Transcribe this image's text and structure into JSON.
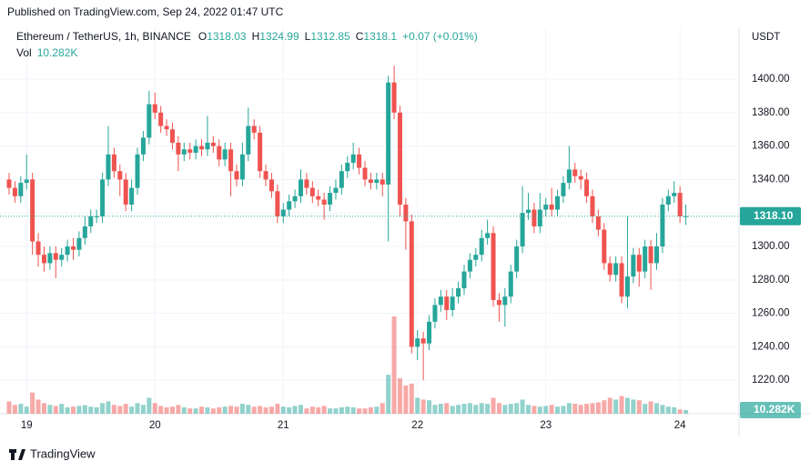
{
  "published": "Published on TradingView.com, Sep 24, 2022 01:47 UTC",
  "brand": "TradingView",
  "chart_data": {
    "type": "candlestick",
    "title": "Ethereum / TetherUS, 1h, BINANCE",
    "ohlc_labels": [
      "O",
      "H",
      "L",
      "C"
    ],
    "change_label": "+0.07 (+0.01%)",
    "y_axis_label": "USDT",
    "up_color": "#26a69a",
    "down_color": "#ef5350",
    "grid": true,
    "categories": [
      null,
      null,
      null,
      "19",
      null,
      null,
      null,
      null,
      null,
      null,
      null,
      null,
      null,
      null,
      null,
      null,
      null,
      null,
      null,
      null,
      null,
      null,
      null,
      null,
      null,
      "20",
      null,
      null,
      null,
      null,
      null,
      null,
      null,
      null,
      null,
      null,
      null,
      null,
      null,
      null,
      null,
      null,
      null,
      null,
      null,
      null,
      null,
      "21",
      null,
      null,
      null,
      null,
      null,
      null,
      null,
      null,
      null,
      null,
      null,
      null,
      null,
      null,
      null,
      null,
      null,
      null,
      null,
      null,
      null,
      null,
      "22",
      null,
      null,
      null,
      null,
      null,
      null,
      null,
      null,
      null,
      null,
      null,
      null,
      null,
      null,
      null,
      null,
      null,
      null,
      null,
      null,
      null,
      "23",
      null,
      null,
      null,
      null,
      null,
      null,
      null,
      null,
      null,
      null,
      null,
      null,
      null,
      null,
      null,
      null,
      null,
      null,
      null,
      null,
      null,
      null,
      "24",
      null
    ],
    "open": [
      1340,
      1335,
      1330,
      1338,
      1340,
      1303,
      1295,
      1290,
      1296,
      1292,
      1295,
      1300,
      1298,
      1305,
      1312,
      1318,
      1318,
      1340,
      1355,
      1345,
      1340,
      1325,
      1335,
      1355,
      1365,
      1385,
      1380,
      1372,
      1370,
      1362,
      1355,
      1358,
      1356,
      1360,
      1358,
      1362,
      1360,
      1352,
      1358,
      1345,
      1340,
      1355,
      1372,
      1368,
      1345,
      1340,
      1333,
      1318,
      1322,
      1327,
      1330,
      1340,
      1335,
      1330,
      1328,
      1325,
      1332,
      1335,
      1345,
      1350,
      1355,
      1347,
      1340,
      1338,
      1340,
      1337,
      1398,
      1380,
      1325,
      1315,
      1240,
      1245,
      1242,
      1255,
      1265,
      1270,
      1262,
      1270,
      1275,
      1285,
      1292,
      1295,
      1305,
      1308,
      1268,
      1265,
      1270,
      1285,
      1300,
      1320,
      1322,
      1312,
      1322,
      1325,
      1322,
      1330,
      1338,
      1346,
      1342,
      1340,
      1330,
      1318,
      1310,
      1290,
      1283,
      1290,
      1270,
      1282,
      1295,
      1285,
      1300,
      1290,
      1300,
      1325,
      1330,
      1332,
      1318.03
    ],
    "high": [
      1344,
      1339,
      1342,
      1355,
      1344,
      1308,
      1300,
      1300,
      1300,
      1299,
      1304,
      1305,
      1309,
      1318,
      1322,
      1322,
      1344,
      1372,
      1359,
      1349,
      1344,
      1340,
      1359,
      1369,
      1393,
      1392,
      1384,
      1376,
      1374,
      1366,
      1362,
      1362,
      1364,
      1364,
      1378,
      1366,
      1364,
      1362,
      1362,
      1349,
      1362,
      1383,
      1376,
      1372,
      1349,
      1344,
      1337,
      1326,
      1331,
      1334,
      1346,
      1344,
      1339,
      1334,
      1332,
      1336,
      1340,
      1349,
      1354,
      1362,
      1359,
      1351,
      1344,
      1344,
      1344,
      1402,
      1408,
      1384,
      1329,
      1319,
      1250,
      1249,
      1259,
      1269,
      1274,
      1274,
      1275,
      1279,
      1289,
      1296,
      1299,
      1310,
      1316,
      1312,
      1272,
      1275,
      1289,
      1304,
      1336,
      1332,
      1326,
      1332,
      1329,
      1335,
      1334,
      1342,
      1360,
      1350,
      1346,
      1344,
      1334,
      1322,
      1314,
      1294,
      1294,
      1294,
      1318,
      1299,
      1299,
      1304,
      1304,
      1308,
      1329,
      1334,
      1339,
      1336,
      1324.99
    ],
    "low": [
      1331,
      1326,
      1326,
      1334,
      1295,
      1288,
      1285,
      1286,
      1281,
      1288,
      1291,
      1292,
      1294,
      1301,
      1308,
      1314,
      1314,
      1336,
      1341,
      1330,
      1321,
      1321,
      1331,
      1351,
      1361,
      1376,
      1368,
      1366,
      1358,
      1345,
      1351,
      1352,
      1352,
      1354,
      1354,
      1356,
      1348,
      1348,
      1330,
      1336,
      1336,
      1351,
      1364,
      1341,
      1336,
      1329,
      1314,
      1314,
      1318,
      1323,
      1326,
      1331,
      1326,
      1324,
      1316,
      1321,
      1328,
      1331,
      1341,
      1346,
      1343,
      1336,
      1334,
      1334,
      1330,
      1303,
      1376,
      1318,
      1298,
      1236,
      1232,
      1220,
      1238,
      1251,
      1261,
      1256,
      1258,
      1266,
      1271,
      1281,
      1288,
      1291,
      1301,
      1264,
      1255,
      1252,
      1266,
      1281,
      1296,
      1316,
      1308,
      1308,
      1318,
      1318,
      1318,
      1326,
      1334,
      1338,
      1334,
      1326,
      1314,
      1306,
      1286,
      1279,
      1279,
      1266,
      1263,
      1278,
      1276,
      1281,
      1274,
      1286,
      1296,
      1321,
      1326,
      1314,
      1312.85
    ],
    "close": [
      1335,
      1330,
      1338,
      1340,
      1303,
      1295,
      1290,
      1296,
      1292,
      1295,
      1300,
      1298,
      1305,
      1312,
      1318,
      1318,
      1340,
      1355,
      1345,
      1340,
      1325,
      1335,
      1355,
      1365,
      1385,
      1380,
      1372,
      1370,
      1362,
      1355,
      1358,
      1356,
      1360,
      1358,
      1362,
      1360,
      1352,
      1358,
      1345,
      1340,
      1355,
      1372,
      1368,
      1345,
      1340,
      1333,
      1318,
      1322,
      1327,
      1330,
      1340,
      1335,
      1330,
      1328,
      1325,
      1332,
      1335,
      1345,
      1350,
      1355,
      1347,
      1340,
      1338,
      1340,
      1337,
      1398,
      1380,
      1325,
      1315,
      1240,
      1245,
      1242,
      1255,
      1265,
      1270,
      1262,
      1270,
      1275,
      1285,
      1292,
      1295,
      1305,
      1308,
      1268,
      1265,
      1270,
      1285,
      1300,
      1320,
      1322,
      1312,
      1322,
      1325,
      1322,
      1330,
      1338,
      1346,
      1342,
      1340,
      1330,
      1318,
      1310,
      1290,
      1283,
      1290,
      1270,
      1282,
      1295,
      1285,
      1300,
      1290,
      1300,
      1325,
      1330,
      1332,
      1318.03,
      1318.1
    ],
    "close_labels": [
      null,
      null,
      null,
      null,
      null,
      null,
      null,
      null,
      null,
      null,
      null,
      null,
      null,
      null,
      null,
      null,
      null,
      null,
      null,
      null,
      null,
      null,
      null,
      null,
      null,
      null,
      null,
      null,
      null,
      null,
      null,
      null,
      null,
      null,
      null,
      null,
      null,
      null,
      null,
      null,
      null,
      null,
      null,
      null,
      null,
      null,
      null,
      null,
      null,
      null,
      null,
      null,
      null,
      null,
      null,
      null,
      null,
      null,
      null,
      null,
      null,
      null,
      null,
      null,
      null,
      null,
      null,
      null,
      null,
      null,
      null,
      null,
      null,
      null,
      null,
      null,
      null,
      null,
      null,
      null,
      null,
      null,
      null,
      null,
      null,
      null,
      null,
      null,
      null,
      null,
      null,
      null,
      null,
      null,
      null,
      null,
      null,
      null,
      null,
      null,
      null,
      null,
      null,
      null,
      null,
      null,
      null,
      null,
      null,
      null,
      null,
      null,
      null,
      null,
      null,
      null,
      "1318.10"
    ],
    "volume": {
      "name": "Vol",
      "values": [
        35000,
        25000,
        28000,
        20000,
        60000,
        40000,
        30000,
        25000,
        22000,
        28000,
        18000,
        20000,
        22000,
        24000,
        20000,
        18000,
        30000,
        35000,
        25000,
        22000,
        28000,
        20000,
        30000,
        25000,
        45000,
        30000,
        22000,
        18000,
        20000,
        25000,
        18000,
        15000,
        15000,
        20000,
        18000,
        15000,
        18000,
        20000,
        22000,
        20000,
        28000,
        25000,
        20000,
        22000,
        18000,
        20000,
        28000,
        20000,
        18000,
        22000,
        25000,
        15000,
        20000,
        18000,
        22000,
        15000,
        15000,
        18000,
        20000,
        18000,
        15000,
        15000,
        18000,
        20000,
        30000,
        110000,
        275000,
        100000,
        80000,
        85000,
        45000,
        40000,
        38000,
        25000,
        28000,
        30000,
        22000,
        25000,
        28000,
        30000,
        25000,
        30000,
        28000,
        45000,
        30000,
        25000,
        28000,
        30000,
        40000,
        25000,
        22000,
        20000,
        22000,
        25000,
        20000,
        22000,
        30000,
        28000,
        25000,
        28000,
        30000,
        32000,
        38000,
        45000,
        40000,
        50000,
        45000,
        40000,
        38000,
        28000,
        35000,
        30000,
        25000,
        20000,
        18000,
        12000,
        10282
      ],
      "value_labels": [
        null,
        null,
        null,
        null,
        null,
        null,
        null,
        null,
        null,
        null,
        null,
        null,
        null,
        null,
        null,
        null,
        null,
        null,
        null,
        null,
        null,
        null,
        null,
        null,
        null,
        null,
        null,
        null,
        null,
        null,
        null,
        null,
        null,
        null,
        null,
        null,
        null,
        null,
        null,
        null,
        null,
        null,
        null,
        null,
        null,
        null,
        null,
        null,
        null,
        null,
        null,
        null,
        null,
        null,
        null,
        null,
        null,
        null,
        null,
        null,
        null,
        null,
        null,
        null,
        null,
        null,
        null,
        null,
        null,
        null,
        null,
        null,
        null,
        null,
        null,
        null,
        null,
        null,
        null,
        null,
        null,
        null,
        null,
        null,
        null,
        null,
        null,
        null,
        null,
        null,
        null,
        null,
        null,
        null,
        null,
        null,
        null,
        null,
        null,
        null,
        null,
        null,
        null,
        null,
        null,
        null,
        null,
        null,
        null,
        null,
        null,
        null,
        null,
        null,
        null,
        null,
        "10.282K"
      ]
    },
    "ylim": [
      1200,
      1431
    ],
    "yticks": [
      {
        "value": 1220,
        "label": "1220.00"
      },
      {
        "value": 1240,
        "label": "1240.00"
      },
      {
        "value": 1260,
        "label": "1260.00"
      },
      {
        "value": 1280,
        "label": "1280.00"
      },
      {
        "value": 1300,
        "label": "1300.00"
      },
      {
        "value": 1320,
        "label": "1320.00"
      },
      {
        "value": 1340,
        "label": "1340.00"
      },
      {
        "value": 1360,
        "label": "1360.00"
      },
      {
        "value": 1380,
        "label": "1380.00"
      },
      {
        "value": 1400,
        "label": "1400.00"
      }
    ]
  }
}
